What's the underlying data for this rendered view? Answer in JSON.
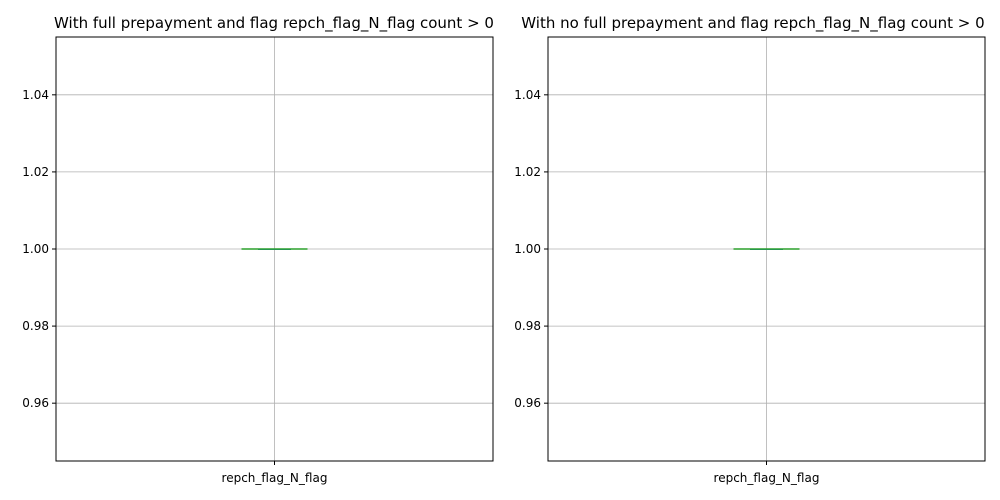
{
  "chart_data": [
    {
      "type": "box",
      "title": "With full prepayment and flag repch_flag_N_flag count > 0",
      "categories": [
        "repch_flag_N_flag"
      ],
      "boxes": [
        {
          "min": 1.0,
          "q1": 1.0,
          "median": 1.0,
          "q3": 1.0,
          "max": 1.0
        }
      ],
      "xlabel": "",
      "ylabel": "",
      "ylim": [
        0.945,
        1.055
      ],
      "yticks": [
        0.96,
        0.98,
        1.0,
        1.02,
        1.04
      ],
      "ytick_labels": [
        "0.96",
        "0.98",
        "1.00",
        "1.02",
        "1.04"
      ],
      "grid": true
    },
    {
      "type": "box",
      "title": "With no full prepayment and flag repch_flag_N_flag count > 0",
      "categories": [
        "repch_flag_N_flag"
      ],
      "boxes": [
        {
          "min": 1.0,
          "q1": 1.0,
          "median": 1.0,
          "q3": 1.0,
          "max": 1.0
        }
      ],
      "xlabel": "",
      "ylabel": "",
      "ylim": [
        0.945,
        1.055
      ],
      "yticks": [
        0.96,
        0.98,
        1.0,
        1.02,
        1.04
      ],
      "ytick_labels": [
        "0.96",
        "0.98",
        "1.00",
        "1.02",
        "1.04"
      ],
      "grid": true
    }
  ],
  "colors": {
    "box": "#1f77b4",
    "median": "#2ca02c",
    "grid": "#b0b0b0",
    "axes": "#000000"
  }
}
